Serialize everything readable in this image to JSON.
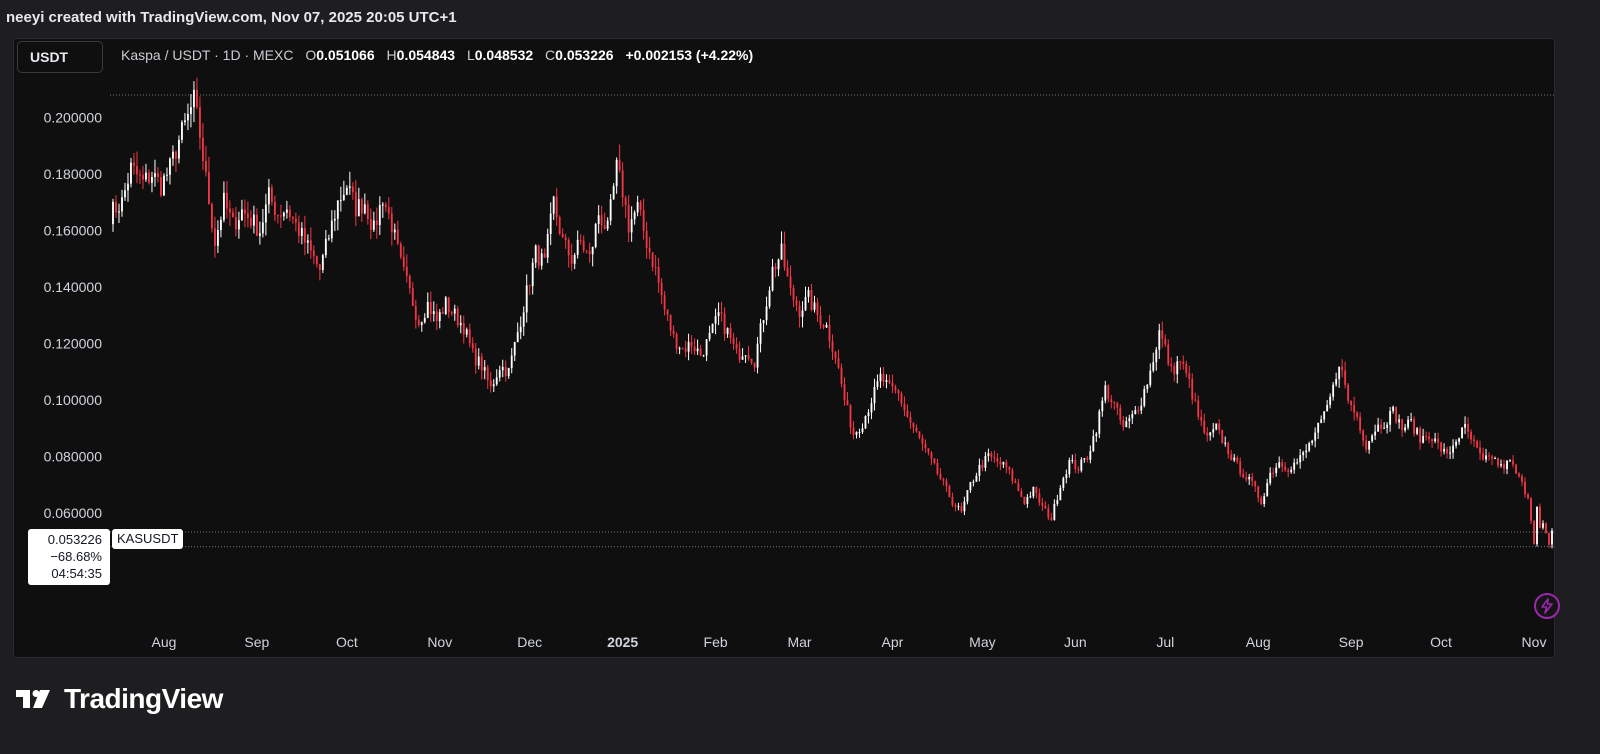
{
  "caption": "neeyi created with TradingView.com, Nov 07, 2025 20:05 UTC+1",
  "currency_button": "USDT",
  "legend": {
    "symbol": "Kaspa / USDT · 1D · MEXC",
    "o_label": "O",
    "o": "0.051066",
    "h_label": "H",
    "h": "0.054843",
    "l_label": "L",
    "l": "0.048532",
    "c_label": "C",
    "c": "0.053226",
    "change": "+0.002153 (+4.22%)"
  },
  "price_label": {
    "price": "0.053226",
    "change_pct": "−68.68%",
    "countdown": "04:54:35",
    "symbol_tag": "KASUSDT"
  },
  "brand": {
    "name": "TradingView",
    "icon": "tradingview-logo-icon"
  },
  "colors": {
    "up": "#ffffff",
    "down": "#f23645",
    "background": "#0f0f0f",
    "accent": "#9c27b0"
  },
  "chart_data": {
    "type": "candlestick",
    "title": "",
    "xlabel": "",
    "ylabel": "",
    "ylim": [
      0.038,
      0.208
    ],
    "y_ticks": [
      {
        "value": 0.2,
        "label": "0.200000"
      },
      {
        "value": 0.18,
        "label": "0.180000"
      },
      {
        "value": 0.16,
        "label": "0.160000"
      },
      {
        "value": 0.14,
        "label": "0.140000"
      },
      {
        "value": 0.12,
        "label": "0.120000"
      },
      {
        "value": 0.1,
        "label": "0.100000"
      },
      {
        "value": 0.08,
        "label": "0.080000"
      },
      {
        "value": 0.06,
        "label": "0.060000"
      }
    ],
    "x_ticks": [
      {
        "label": "Aug",
        "date": "2024-08-01",
        "bold": false
      },
      {
        "label": "Sep",
        "date": "2024-09-01",
        "bold": false
      },
      {
        "label": "Oct",
        "date": "2024-10-01",
        "bold": false
      },
      {
        "label": "Nov",
        "date": "2024-11-01",
        "bold": false
      },
      {
        "label": "Dec",
        "date": "2024-12-01",
        "bold": false
      },
      {
        "label": "2025",
        "date": "2025-01-01",
        "bold": true
      },
      {
        "label": "Feb",
        "date": "2025-02-01",
        "bold": false
      },
      {
        "label": "Mar",
        "date": "2025-03-01",
        "bold": false
      },
      {
        "label": "Apr",
        "date": "2025-04-01",
        "bold": false
      },
      {
        "label": "May",
        "date": "2025-05-01",
        "bold": false
      },
      {
        "label": "Jun",
        "date": "2025-06-01",
        "bold": false
      },
      {
        "label": "Jul",
        "date": "2025-07-01",
        "bold": false
      },
      {
        "label": "Aug",
        "date": "2025-08-01",
        "bold": false
      },
      {
        "label": "Sep",
        "date": "2025-09-01",
        "bold": false
      },
      {
        "label": "Oct",
        "date": "2025-10-01",
        "bold": false
      },
      {
        "label": "Nov",
        "date": "2025-11-01",
        "bold": false
      }
    ],
    "x_range": [
      "2024-07-14",
      "2025-11-07"
    ],
    "price_line": 0.053226,
    "high_line": 0.208,
    "low_line": 0.048,
    "path": [
      [
        "2024-07-14",
        0.166
      ],
      [
        "2024-07-18",
        0.17
      ],
      [
        "2024-07-21",
        0.182
      ],
      [
        "2024-07-25",
        0.177
      ],
      [
        "2024-07-28",
        0.18
      ],
      [
        "2024-07-31",
        0.176
      ],
      [
        "2024-08-03",
        0.182
      ],
      [
        "2024-08-06",
        0.192
      ],
      [
        "2024-08-09",
        0.2
      ],
      [
        "2024-08-11",
        0.206
      ],
      [
        "2024-08-13",
        0.194
      ],
      [
        "2024-08-15",
        0.178
      ],
      [
        "2024-08-18",
        0.156
      ],
      [
        "2024-08-21",
        0.17
      ],
      [
        "2024-08-24",
        0.162
      ],
      [
        "2024-08-27",
        0.167
      ],
      [
        "2024-08-30",
        0.164
      ],
      [
        "2024-09-02",
        0.16
      ],
      [
        "2024-09-05",
        0.172
      ],
      [
        "2024-09-08",
        0.166
      ],
      [
        "2024-09-11",
        0.168
      ],
      [
        "2024-09-15",
        0.16
      ],
      [
        "2024-09-19",
        0.152
      ],
      [
        "2024-09-22",
        0.146
      ],
      [
        "2024-09-25",
        0.158
      ],
      [
        "2024-09-28",
        0.17
      ],
      [
        "2024-10-01",
        0.176
      ],
      [
        "2024-10-04",
        0.168
      ],
      [
        "2024-10-07",
        0.17
      ],
      [
        "2024-10-10",
        0.16
      ],
      [
        "2024-10-13",
        0.172
      ],
      [
        "2024-10-16",
        0.162
      ],
      [
        "2024-10-19",
        0.148
      ],
      [
        "2024-10-22",
        0.138
      ],
      [
        "2024-10-25",
        0.128
      ],
      [
        "2024-10-28",
        0.134
      ],
      [
        "2024-10-31",
        0.128
      ],
      [
        "2024-11-03",
        0.134
      ],
      [
        "2024-11-06",
        0.13
      ],
      [
        "2024-11-09",
        0.126
      ],
      [
        "2024-11-12",
        0.116
      ],
      [
        "2024-11-15",
        0.112
      ],
      [
        "2024-11-18",
        0.104
      ],
      [
        "2024-11-21",
        0.112
      ],
      [
        "2024-11-24",
        0.11
      ],
      [
        "2024-11-27",
        0.124
      ],
      [
        "2024-11-30",
        0.138
      ],
      [
        "2024-12-03",
        0.152
      ],
      [
        "2024-12-06",
        0.148
      ],
      [
        "2024-12-09",
        0.17
      ],
      [
        "2024-12-12",
        0.156
      ],
      [
        "2024-12-15",
        0.15
      ],
      [
        "2024-12-18",
        0.156
      ],
      [
        "2024-12-21",
        0.15
      ],
      [
        "2024-12-24",
        0.166
      ],
      [
        "2024-12-27",
        0.16
      ],
      [
        "2024-12-30",
        0.182
      ],
      [
        "2025-01-01",
        0.174
      ],
      [
        "2025-01-03",
        0.162
      ],
      [
        "2025-01-06",
        0.168
      ],
      [
        "2025-01-09",
        0.156
      ],
      [
        "2025-01-12",
        0.146
      ],
      [
        "2025-01-15",
        0.132
      ],
      [
        "2025-01-18",
        0.122
      ],
      [
        "2025-01-21",
        0.118
      ],
      [
        "2025-01-24",
        0.12
      ],
      [
        "2025-01-27",
        0.116
      ],
      [
        "2025-01-30",
        0.122
      ],
      [
        "2025-02-02",
        0.13
      ],
      [
        "2025-02-05",
        0.124
      ],
      [
        "2025-02-08",
        0.116
      ],
      [
        "2025-02-11",
        0.118
      ],
      [
        "2025-02-14",
        0.114
      ],
      [
        "2025-02-17",
        0.13
      ],
      [
        "2025-02-20",
        0.146
      ],
      [
        "2025-02-23",
        0.152
      ],
      [
        "2025-02-26",
        0.138
      ],
      [
        "2025-03-01",
        0.132
      ],
      [
        "2025-03-04",
        0.136
      ],
      [
        "2025-03-07",
        0.13
      ],
      [
        "2025-03-10",
        0.126
      ],
      [
        "2025-03-13",
        0.116
      ],
      [
        "2025-03-16",
        0.1
      ],
      [
        "2025-03-19",
        0.088
      ],
      [
        "2025-03-22",
        0.092
      ],
      [
        "2025-03-25",
        0.1
      ],
      [
        "2025-03-28",
        0.108
      ],
      [
        "2025-03-31",
        0.104
      ],
      [
        "2025-04-03",
        0.102
      ],
      [
        "2025-04-06",
        0.094
      ],
      [
        "2025-04-09",
        0.088
      ],
      [
        "2025-04-12",
        0.082
      ],
      [
        "2025-04-15",
        0.076
      ],
      [
        "2025-04-18",
        0.07
      ],
      [
        "2025-04-21",
        0.064
      ],
      [
        "2025-04-24",
        0.06
      ],
      [
        "2025-04-27",
        0.07
      ],
      [
        "2025-04-30",
        0.076
      ],
      [
        "2025-05-03",
        0.08
      ],
      [
        "2025-05-06",
        0.078
      ],
      [
        "2025-05-09",
        0.076
      ],
      [
        "2025-05-12",
        0.07
      ],
      [
        "2025-05-15",
        0.064
      ],
      [
        "2025-05-18",
        0.068
      ],
      [
        "2025-05-21",
        0.062
      ],
      [
        "2025-05-24",
        0.058
      ],
      [
        "2025-05-27",
        0.07
      ],
      [
        "2025-05-30",
        0.078
      ],
      [
        "2025-06-02",
        0.076
      ],
      [
        "2025-06-05",
        0.08
      ],
      [
        "2025-06-08",
        0.09
      ],
      [
        "2025-06-11",
        0.104
      ],
      [
        "2025-06-14",
        0.098
      ],
      [
        "2025-06-17",
        0.09
      ],
      [
        "2025-06-20",
        0.094
      ],
      [
        "2025-06-23",
        0.1
      ],
      [
        "2025-06-26",
        0.11
      ],
      [
        "2025-06-29",
        0.124
      ],
      [
        "2025-07-01",
        0.118
      ],
      [
        "2025-07-03",
        0.11
      ],
      [
        "2025-07-06",
        0.114
      ],
      [
        "2025-07-09",
        0.106
      ],
      [
        "2025-07-12",
        0.094
      ],
      [
        "2025-07-15",
        0.086
      ],
      [
        "2025-07-18",
        0.09
      ],
      [
        "2025-07-21",
        0.084
      ],
      [
        "2025-07-24",
        0.078
      ],
      [
        "2025-07-27",
        0.074
      ],
      [
        "2025-07-30",
        0.07
      ],
      [
        "2025-08-02",
        0.064
      ],
      [
        "2025-08-05",
        0.074
      ],
      [
        "2025-08-08",
        0.078
      ],
      [
        "2025-08-11",
        0.076
      ],
      [
        "2025-08-14",
        0.078
      ],
      [
        "2025-08-17",
        0.082
      ],
      [
        "2025-08-20",
        0.088
      ],
      [
        "2025-08-23",
        0.094
      ],
      [
        "2025-08-26",
        0.104
      ],
      [
        "2025-08-28",
        0.114
      ],
      [
        "2025-08-31",
        0.1
      ],
      [
        "2025-09-03",
        0.094
      ],
      [
        "2025-09-06",
        0.084
      ],
      [
        "2025-09-09",
        0.09
      ],
      [
        "2025-09-12",
        0.092
      ],
      [
        "2025-09-15",
        0.096
      ],
      [
        "2025-09-18",
        0.09
      ],
      [
        "2025-09-21",
        0.092
      ],
      [
        "2025-09-24",
        0.086
      ],
      [
        "2025-09-27",
        0.088
      ],
      [
        "2025-09-30",
        0.084
      ],
      [
        "2025-10-03",
        0.08
      ],
      [
        "2025-10-06",
        0.086
      ],
      [
        "2025-10-09",
        0.09
      ],
      [
        "2025-10-12",
        0.084
      ],
      [
        "2025-10-15",
        0.078
      ],
      [
        "2025-10-18",
        0.08
      ],
      [
        "2025-10-21",
        0.076
      ],
      [
        "2025-10-24",
        0.078
      ],
      [
        "2025-10-27",
        0.072
      ],
      [
        "2025-10-30",
        0.066
      ],
      [
        "2025-11-01",
        0.05
      ],
      [
        "2025-11-02",
        0.062
      ],
      [
        "2025-11-03",
        0.054
      ],
      [
        "2025-11-04",
        0.056
      ],
      [
        "2025-11-05",
        0.052
      ],
      [
        "2025-11-06",
        0.048
      ],
      [
        "2025-11-07",
        0.053
      ]
    ]
  }
}
